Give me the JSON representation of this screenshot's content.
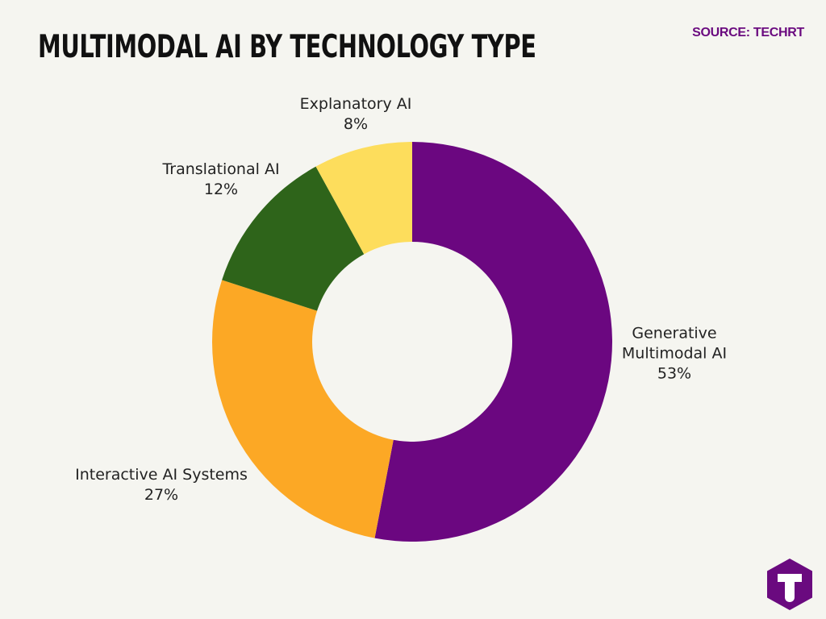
{
  "header": {
    "title": "MULTIMODAL AI BY TECHNOLOGY TYPE",
    "source": "SOURCE: TECHRT"
  },
  "colors": {
    "background": "#f5f5f0",
    "source_text": "#6a0a7f",
    "logo_bg": "#6a0a7f",
    "logo_fg": "#ffffff"
  },
  "logo": {
    "icon": "techrt-t-logo-icon"
  },
  "chart_data": {
    "type": "pie",
    "variant": "donut",
    "title": "MULTIMODAL AI BY TECHNOLOGY TYPE",
    "start": "top",
    "direction": "clockwise",
    "slices": [
      {
        "label": "Generative Multimodal AI",
        "label_lines": [
          "Generative",
          "Multimodal AI"
        ],
        "value": 53,
        "value_label": "53%",
        "color": "#6b0780"
      },
      {
        "label": "Interactive AI Systems",
        "label_lines": [
          "Interactive AI Systems"
        ],
        "value": 27,
        "value_label": "27%",
        "color": "#fca825"
      },
      {
        "label": "Translational AI",
        "label_lines": [
          "Translational AI"
        ],
        "value": 12,
        "value_label": "12%",
        "color": "#2e641a"
      },
      {
        "label": "Explanatory AI",
        "label_lines": [
          "Explanatory AI"
        ],
        "value": 8,
        "value_label": "8%",
        "color": "#fddd5c"
      }
    ]
  }
}
